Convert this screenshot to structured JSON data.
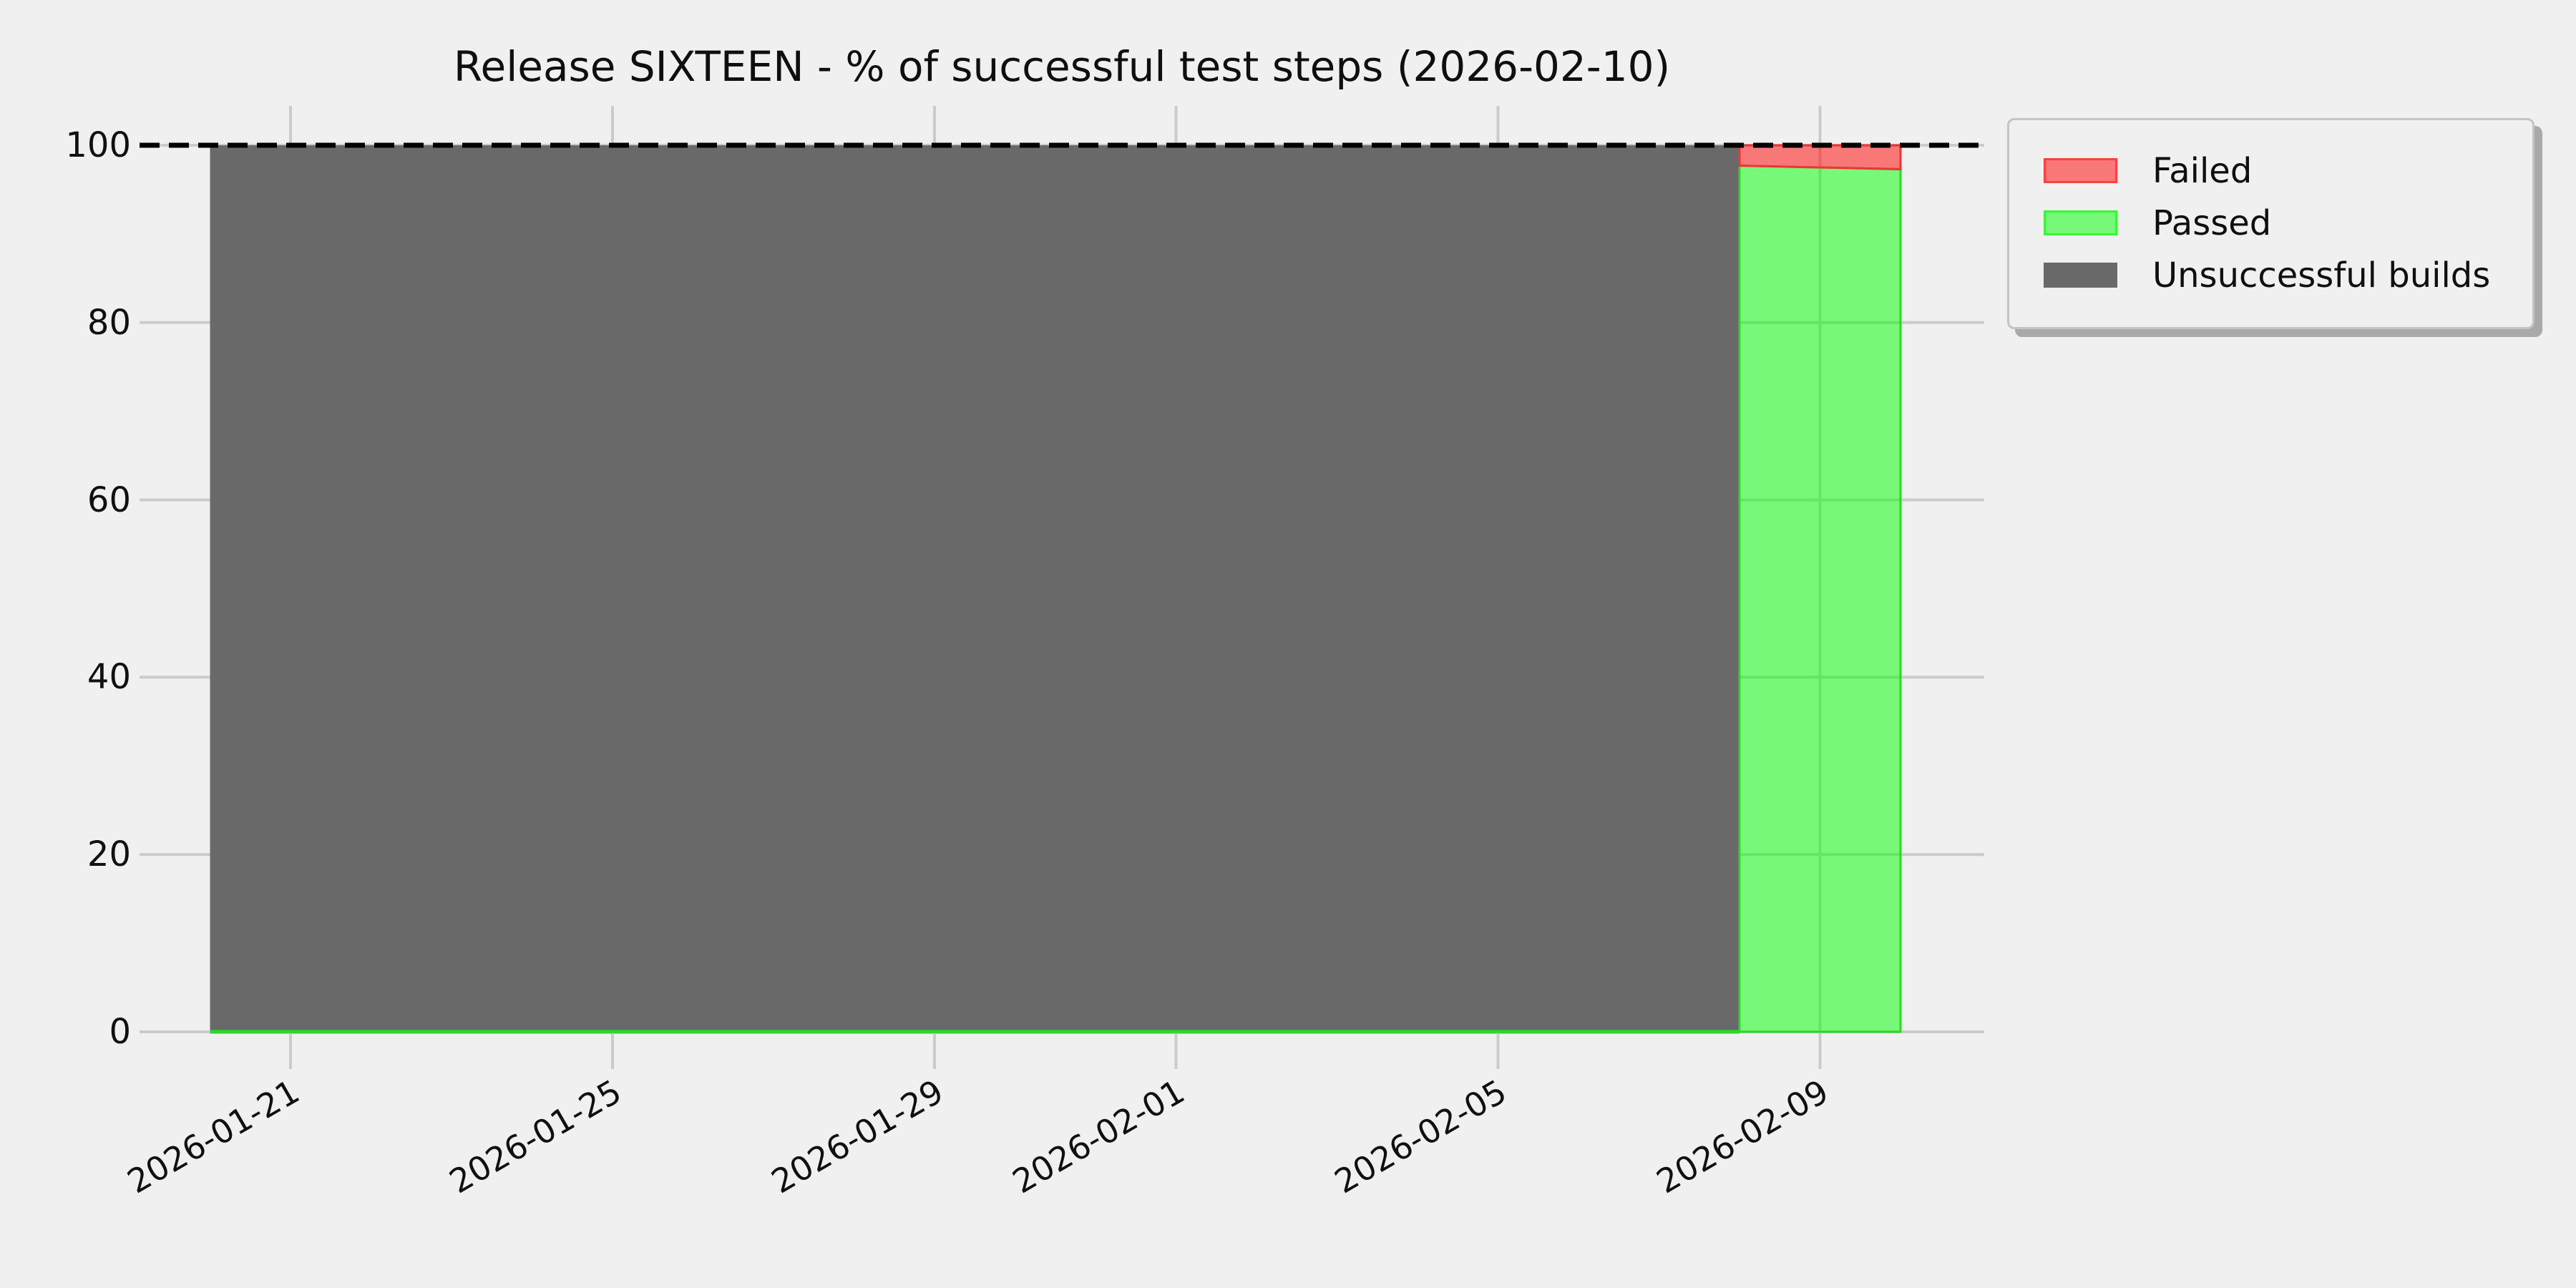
{
  "title": "Release SIXTEEN - % of successful test steps (2026-02-10)",
  "legend": {
    "items": [
      {
        "label": "Failed",
        "swatch_fill": "#F87878",
        "swatch_edge": "#FF4040"
      },
      {
        "label": "Passed",
        "swatch_fill": "#78F878",
        "swatch_edge": "#3BF53B"
      },
      {
        "label": "Unsuccessful builds",
        "swatch_fill": "#696969",
        "swatch_edge": "#696969"
      }
    ]
  },
  "axes": {
    "y_tick_labels": [
      "0",
      "20",
      "40",
      "60",
      "80",
      "100"
    ],
    "x_tick_labels": [
      "2026-01-21",
      "2026-01-25",
      "2026-01-29",
      "2026-02-01",
      "2026-02-05",
      "2026-02-09"
    ]
  },
  "chart_data": {
    "type": "area",
    "stacked": true,
    "title": "Release SIXTEEN - % of successful test steps (2026-02-10)",
    "x": [
      "2026-01-20",
      "2026-01-21",
      "2026-01-22",
      "2026-01-23",
      "2026-01-24",
      "2026-01-25",
      "2026-01-26",
      "2026-01-27",
      "2026-01-28",
      "2026-01-29",
      "2026-01-30",
      "2026-01-31",
      "2026-02-01",
      "2026-02-02",
      "2026-02-03",
      "2026-02-04",
      "2026-02-05",
      "2026-02-06",
      "2026-02-07",
      "2026-02-08",
      "2026-02-09",
      "2026-02-10"
    ],
    "series": [
      {
        "name": "Failed",
        "fill": "rgba(255,0,0,0.5)",
        "edge": "#F03333",
        "values": [
          0,
          0,
          0,
          0,
          0,
          0,
          0,
          0,
          0,
          0,
          0,
          0,
          0,
          0,
          0,
          0,
          0,
          0,
          0,
          2.3,
          2.5,
          2.7
        ]
      },
      {
        "name": "Passed",
        "fill": "rgba(0,255,0,0.5)",
        "edge": "#2BD92B",
        "values": [
          0,
          0,
          0,
          0,
          0,
          0,
          0,
          0,
          0,
          0,
          0,
          0,
          0,
          0,
          0,
          0,
          0,
          0,
          0,
          97.7,
          97.5,
          97.3
        ]
      },
      {
        "name": "Unsuccessful builds",
        "fill": "#696969",
        "edge": "#696969",
        "values": [
          100,
          100,
          100,
          100,
          100,
          100,
          100,
          100,
          100,
          100,
          100,
          100,
          100,
          100,
          100,
          100,
          100,
          100,
          100,
          100,
          0,
          0
        ]
      }
    ],
    "ylim": [
      0,
      104.5
    ],
    "y_ticks": [
      0,
      20,
      40,
      60,
      80,
      100
    ],
    "x_ticks": [
      "2026-01-21",
      "2026-01-25",
      "2026-01-29",
      "2026-02-01",
      "2026-02-05",
      "2026-02-09"
    ],
    "target_line": {
      "y": 100,
      "style": "dashed",
      "color": "#000000"
    },
    "grid": true,
    "grid_color": "#cbcbcb",
    "background_color": "#f0f0f0",
    "legend_position": "upper right",
    "x_tick_rotation_deg": 30
  }
}
